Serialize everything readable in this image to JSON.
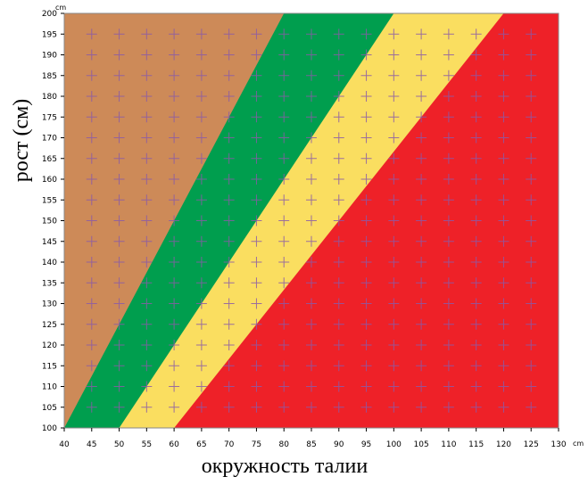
{
  "chart_data": {
    "type": "area",
    "xlabel": "окружность талии",
    "ylabel": "рост (см)",
    "x_unit": "cm",
    "y_unit": "cm",
    "xlim": [
      40,
      130
    ],
    "ylim": [
      100,
      200
    ],
    "x_ticks": [
      40,
      45,
      50,
      55,
      60,
      65,
      70,
      75,
      80,
      85,
      90,
      95,
      100,
      105,
      110,
      115,
      120,
      125,
      130
    ],
    "y_ticks": [
      100,
      105,
      110,
      115,
      120,
      125,
      130,
      135,
      140,
      145,
      150,
      155,
      160,
      165,
      170,
      175,
      180,
      185,
      190,
      195,
      200
    ],
    "grid": true,
    "grid_marker": "plus",
    "regions": [
      {
        "color": "#cd8a58",
        "boundary_right": {
          "x_at_ymin": 40,
          "x_at_ymax": 80
        }
      },
      {
        "color": "#009e4e",
        "boundary_right": {
          "x_at_ymin": 50,
          "x_at_ymax": 100
        }
      },
      {
        "color": "#fade60",
        "boundary_right": {
          "x_at_ymin": 60,
          "x_at_ymax": 120
        }
      },
      {
        "color": "#ee2128",
        "boundary_right": null
      }
    ],
    "grid_color": "#8a5aa8"
  }
}
